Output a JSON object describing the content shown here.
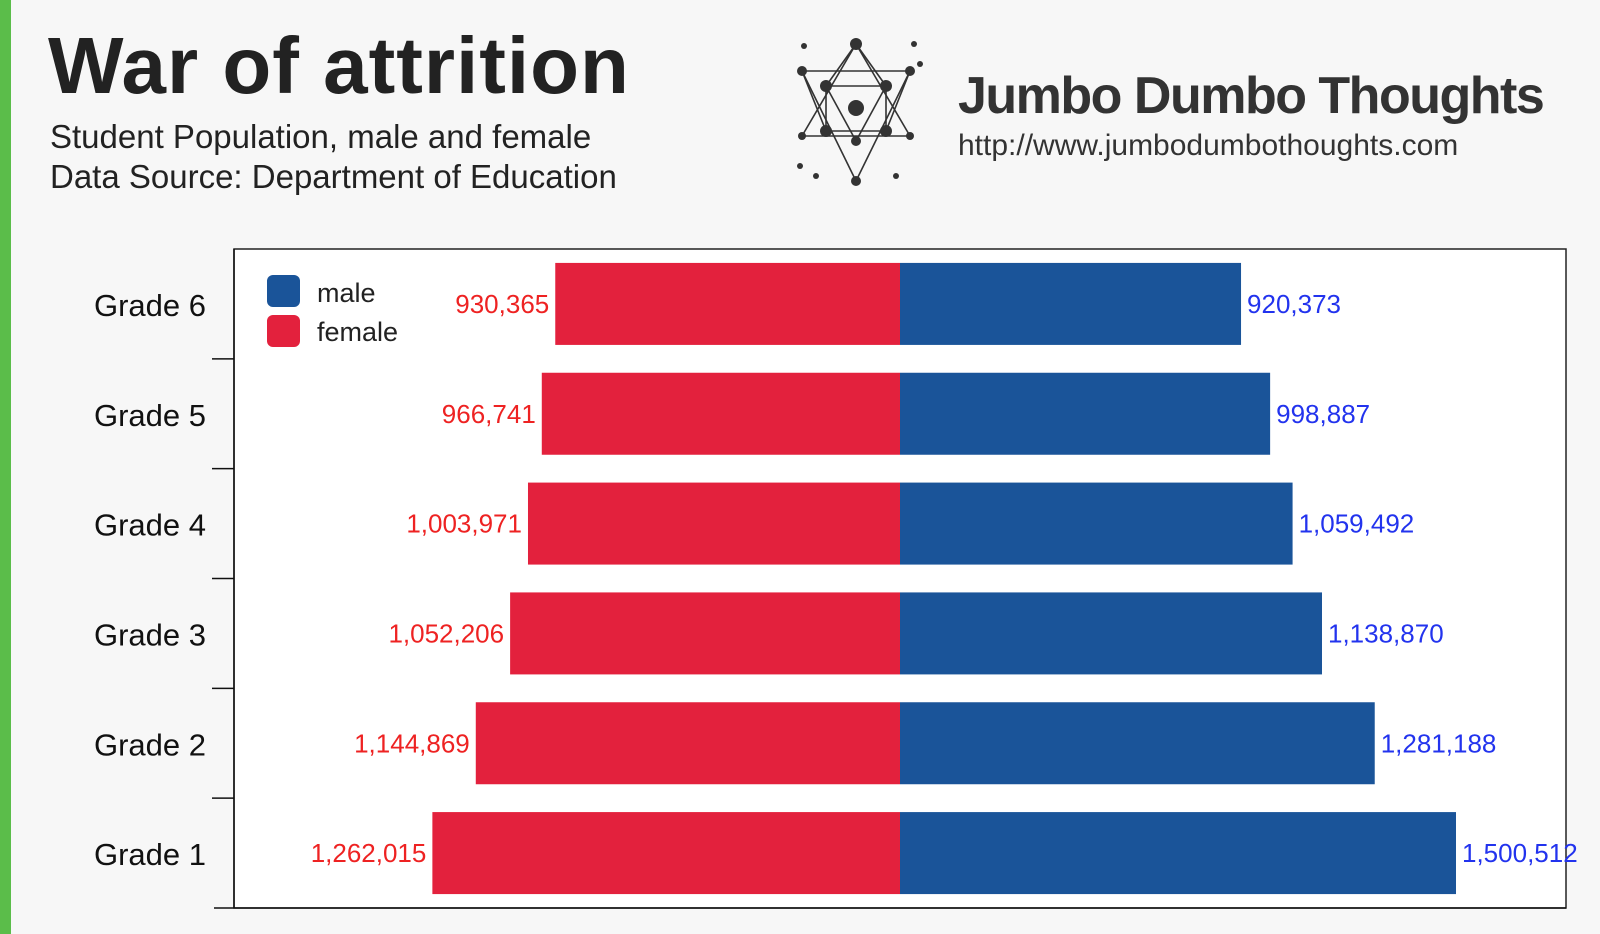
{
  "header": {
    "title": "War of attrition",
    "subtitle": "Student Population, male and female",
    "source": "Data Source: Department of Education"
  },
  "brand": {
    "name": "Jumbo Dumbo Thoughts",
    "url": "http://www.jumbodumbothoughts.com",
    "logo_icon": "network-nodes-icon"
  },
  "colors": {
    "male": "#1a5499",
    "female": "#e3213d",
    "male_label": "#2233ee",
    "female_label": "#ee2222",
    "accent_stripe": "#5bbd4a"
  },
  "chart_data": {
    "type": "bar",
    "orientation": "horizontal",
    "layout": "diverging",
    "categories": [
      "Grade 6",
      "Grade 5",
      "Grade 4",
      "Grade 3",
      "Grade 2",
      "Grade 1"
    ],
    "series": [
      {
        "name": "male",
        "values": [
          920373,
          998887,
          1059492,
          1138870,
          1281188,
          1500512
        ],
        "labels": [
          "920,373",
          "998,887",
          "1,059,492",
          "1,138,870",
          "1,281,188",
          "1,500,512"
        ]
      },
      {
        "name": "female",
        "values": [
          930365,
          966741,
          1003971,
          1052206,
          1144869,
          1262015
        ],
        "labels": [
          "930,365",
          "966,741",
          "1,003,971",
          "1,052,206",
          "1,144,869",
          "1,262,015"
        ]
      }
    ],
    "xlim": [
      -1650000,
      1650000
    ],
    "grid": false,
    "legend": "top-left"
  }
}
